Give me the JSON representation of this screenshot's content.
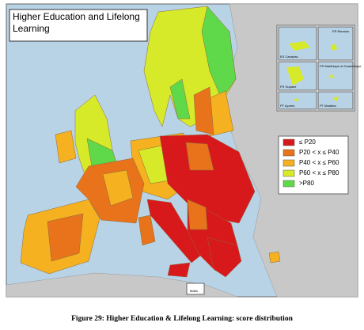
{
  "title": "Higher Education and Lifelong Learning",
  "legend": [
    {
      "label": "≤ P20",
      "color": "#d7191c"
    },
    {
      "label": "P20 < x ≤ P40",
      "color": "#e8731a"
    },
    {
      "label": "P40 < x ≤ P60",
      "color": "#f5b120"
    },
    {
      "label": "P60 < x ≤ P80",
      "color": "#d7ea2a"
    },
    {
      "label": ">P80",
      "color": "#5fd94a"
    }
  ],
  "insets": [
    "ES Canarias",
    "FR Réunion",
    "FR Guyane",
    "FR Martinique et Guadeloupe",
    "PT Açores",
    "PT Madeira"
  ],
  "malta": "Malta",
  "caption": "Figure 29: Higher Education & Lifelong Learning: score distribution"
}
